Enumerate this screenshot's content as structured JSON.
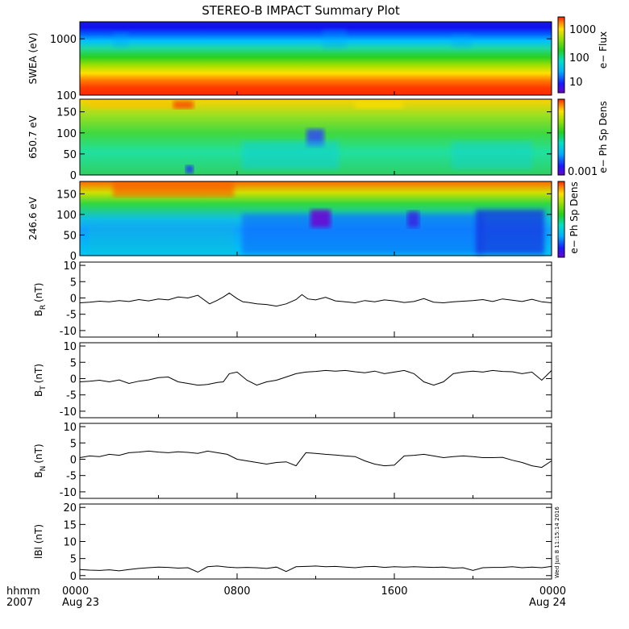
{
  "title": "STEREO-B IMPACT Summary Plot",
  "stamp": "Wed Jun  8 11:15:14 2016",
  "time_axis": {
    "row_label": "hhmm",
    "year_label": "2007",
    "ticks": [
      {
        "time": "0000",
        "date": "Aug 23",
        "hour": 0
      },
      {
        "time": "0800",
        "date": "",
        "hour": 8
      },
      {
        "time": "1600",
        "date": "",
        "hour": 16
      },
      {
        "time": "0000",
        "date": "Aug 24",
        "hour": 24
      }
    ]
  },
  "colorbars": [
    {
      "label": "e− Flux",
      "ticks": [
        "1000",
        "100",
        "10"
      ]
    },
    {
      "label": "e− Ph Sp Dens",
      "ticks": [
        "0.001"
      ]
    },
    {
      "label": "e− Ph Sp Dens",
      "ticks": []
    }
  ],
  "chart_data": [
    {
      "type": "heatmap",
      "ylabel": "SWEA (eV)",
      "y_scale": "log",
      "ylim": [
        100,
        2000
      ],
      "yticks": [
        "1000",
        "100"
      ],
      "note_colors": "energy bands vs time: red near 100 eV, yellow ~200 eV, green ~300-500 eV, cyan ~700 eV, blue above 1000 eV"
    },
    {
      "type": "heatmap",
      "ylabel": "650.7 eV",
      "ylim": [
        0,
        180
      ],
      "yticks": [
        "0",
        "50",
        "100",
        "150"
      ],
      "colors_dominant": "green/cyan with yellow-red near 180 deg"
    },
    {
      "type": "heatmap",
      "ylabel": "246.6 eV",
      "ylim": [
        0,
        180
      ],
      "yticks": [
        "0",
        "50",
        "100",
        "150"
      ],
      "colors_dominant": "red/yellow near 180 deg, blue below 100 deg"
    },
    {
      "type": "line",
      "ylabel": "B_R (nT)",
      "ylabel_main": "B",
      "ylabel_sub": "R",
      "ylabel_unit": "(nT)",
      "ylim": [
        -12,
        11
      ],
      "yticks": [
        10,
        5,
        0,
        -5,
        -10
      ],
      "x_hours": [
        0,
        0.5,
        1,
        1.5,
        2,
        2.5,
        3,
        3.5,
        4,
        4.5,
        5,
        5.5,
        6,
        6.3,
        6.6,
        7,
        7.3,
        7.6,
        8,
        8.3,
        8.6,
        9,
        9.5,
        10,
        10.5,
        11,
        11.3,
        11.6,
        12,
        12.5,
        13,
        13.5,
        14,
        14.5,
        15,
        15.5,
        16,
        16.5,
        17,
        17.5,
        18,
        18.5,
        19,
        19.5,
        20,
        20.5,
        21,
        21.5,
        22,
        22.5,
        23,
        23.5,
        24
      ],
      "values": [
        -1.5,
        -1.3,
        -1,
        -1.2,
        -0.8,
        -1.1,
        -0.5,
        -0.9,
        -0.3,
        -0.6,
        0.3,
        0,
        0.8,
        -0.5,
        -1.8,
        -0.7,
        0.3,
        1.5,
        -0.2,
        -1.2,
        -1.4,
        -1.8,
        -2,
        -2.5,
        -1.8,
        -0.5,
        1,
        -0.3,
        -0.6,
        0.2,
        -0.9,
        -1.2,
        -1.5,
        -0.8,
        -1.2,
        -0.6,
        -0.9,
        -1.4,
        -1.1,
        -0.2,
        -1.3,
        -1.5,
        -1.2,
        -1,
        -0.8,
        -0.5,
        -1.1,
        -0.3,
        -0.7,
        -1.1,
        -0.4,
        -1.2,
        -1.5
      ]
    },
    {
      "type": "line",
      "ylabel": "B_T (nT)",
      "ylabel_main": "B",
      "ylabel_sub": "T",
      "ylabel_unit": "(nT)",
      "ylim": [
        -12,
        11
      ],
      "yticks": [
        10,
        5,
        0,
        -5,
        -10
      ],
      "x_hours": [
        0,
        0.5,
        1,
        1.5,
        2,
        2.5,
        3,
        3.5,
        4,
        4.5,
        5,
        5.5,
        6,
        6.5,
        7,
        7.3,
        7.6,
        8,
        8.5,
        9,
        9.5,
        10,
        10.5,
        11,
        11.5,
        12,
        12.5,
        13,
        13.5,
        14,
        14.5,
        15,
        15.5,
        16,
        16.5,
        17,
        17.5,
        18,
        18.5,
        19,
        19.5,
        20,
        20.5,
        21,
        21.5,
        22,
        22.5,
        23,
        23.5,
        24
      ],
      "values": [
        -1,
        -0.8,
        -0.5,
        -1,
        -0.4,
        -1.5,
        -0.8,
        -0.4,
        0.3,
        0.5,
        -1,
        -1.5,
        -2,
        -1.8,
        -1.2,
        -1,
        1.5,
        2,
        -0.5,
        -2,
        -1,
        -0.5,
        0.5,
        1.5,
        2,
        2.2,
        2.5,
        2.3,
        2.5,
        2.1,
        1.8,
        2.3,
        1.5,
        2,
        2.5,
        1.5,
        -1,
        -2,
        -1,
        1.5,
        2,
        2.3,
        2,
        2.5,
        2.2,
        2.1,
        1.5,
        2,
        -0.5,
        2.5
      ]
    },
    {
      "type": "line",
      "ylabel": "B_N (nT)",
      "ylabel_main": "B",
      "ylabel_sub": "N",
      "ylabel_unit": "(nT)",
      "ylim": [
        -12,
        11
      ],
      "yticks": [
        10,
        5,
        0,
        -5,
        -10
      ],
      "x_hours": [
        0,
        0.5,
        1,
        1.5,
        2,
        2.5,
        3,
        3.5,
        4,
        4.5,
        5,
        5.5,
        6,
        6.5,
        7,
        7.5,
        8,
        8.5,
        9,
        9.5,
        10,
        10.5,
        11,
        11.5,
        12,
        12.5,
        13,
        13.5,
        14,
        14.5,
        15,
        15.5,
        16,
        16.5,
        17,
        17.5,
        18,
        18.5,
        19,
        19.5,
        20,
        20.5,
        21,
        21.5,
        22,
        22.5,
        23,
        23.5,
        24
      ],
      "values": [
        0.5,
        1,
        0.8,
        1.5,
        1.2,
        2,
        2.2,
        2.5,
        2.2,
        2,
        2.3,
        2.1,
        1.8,
        2.5,
        2,
        1.5,
        0,
        -0.5,
        -1,
        -1.5,
        -1,
        -0.8,
        -2,
        2,
        1.8,
        1.5,
        1.3,
        1,
        0.8,
        -0.5,
        -1.5,
        -2,
        -1.8,
        1,
        1.2,
        1.5,
        1,
        0.5,
        0.8,
        1,
        0.8,
        0.5,
        0.5,
        0.6,
        -0.3,
        -1,
        -2,
        -2.5,
        -0.5
      ]
    },
    {
      "type": "line",
      "ylabel": "|B| (nT)",
      "ylabel_display": "lBl (nT)",
      "ylim": [
        -1,
        21
      ],
      "yticks": [
        20,
        15,
        10,
        5,
        0
      ],
      "x_hours": [
        0,
        0.5,
        1,
        1.5,
        2,
        2.5,
        3,
        3.5,
        4,
        4.5,
        5,
        5.5,
        6,
        6.5,
        7,
        7.5,
        8,
        8.5,
        9,
        9.5,
        10,
        10.5,
        11,
        11.5,
        12,
        12.5,
        13,
        13.5,
        14,
        14.5,
        15,
        15.5,
        16,
        16.5,
        17,
        17.5,
        18,
        18.5,
        19,
        19.5,
        20,
        20.5,
        21,
        21.5,
        22,
        22.5,
        23,
        23.5,
        24
      ],
      "values": [
        1.8,
        1.6,
        1.5,
        1.7,
        1.4,
        1.8,
        2.1,
        2.3,
        2.5,
        2.4,
        2.2,
        2.3,
        1,
        2.6,
        2.8,
        2.5,
        2.3,
        2.4,
        2.3,
        2.1,
        2.5,
        1.2,
        2.6,
        2.7,
        2.8,
        2.6,
        2.7,
        2.5,
        2.3,
        2.6,
        2.7,
        2.4,
        2.6,
        2.5,
        2.6,
        2.5,
        2.4,
        2.5,
        2.2,
        2.3,
        1.5,
        2.3,
        2.4,
        2.4,
        2.6,
        2.3,
        2.5,
        2.3,
        2.7
      ]
    }
  ]
}
